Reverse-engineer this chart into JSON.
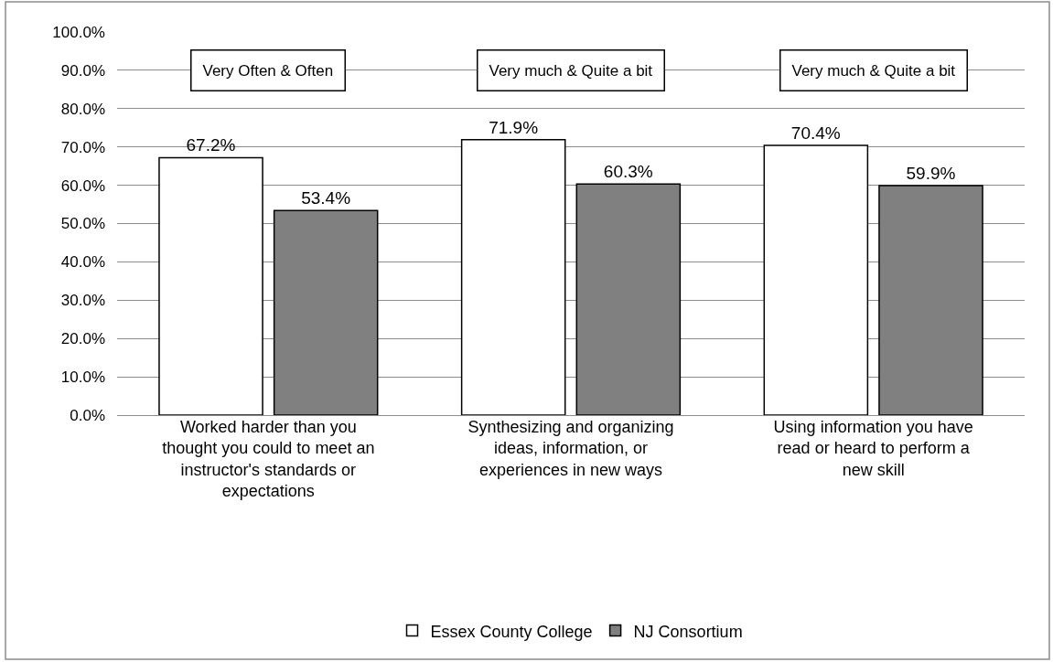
{
  "chart_data": {
    "type": "bar",
    "categories": [
      "Worked harder than you thought you could to meet an instructor's standards or expectations",
      "Synthesizing and organizing ideas, information, or experiences in new ways",
      "Using information you have read or heard to perform a new skill"
    ],
    "series": [
      {
        "name": "Essex County College",
        "color": "#ffffff",
        "values": [
          67.2,
          71.9,
          70.4
        ],
        "value_labels": [
          "67.2%",
          "71.9%",
          "70.4%"
        ]
      },
      {
        "name": "NJ Consortium",
        "color": "#808080",
        "values": [
          53.4,
          60.3,
          59.9
        ],
        "value_labels": [
          "53.4%",
          "60.3%",
          "59.9%"
        ]
      }
    ],
    "ylim": [
      0,
      100
    ],
    "yticks": [
      {
        "value": 0,
        "label": "0.0%"
      },
      {
        "value": 10,
        "label": "10.0%"
      },
      {
        "value": 20,
        "label": "20.0%"
      },
      {
        "value": 30,
        "label": "30.0%"
      },
      {
        "value": 40,
        "label": "40.0%"
      },
      {
        "value": 50,
        "label": "50.0%"
      },
      {
        "value": 60,
        "label": "60.0%"
      },
      {
        "value": 70,
        "label": "70.0%"
      },
      {
        "value": 80,
        "label": "80.0%"
      },
      {
        "value": 90,
        "label": "90.0%"
      },
      {
        "value": 100,
        "label": "100.0%"
      }
    ],
    "grid": "y",
    "legend": "bottom",
    "annotations": [
      "Very Often & Often",
      "Very much & Quite a bit",
      "Very much & Quite a bit"
    ]
  }
}
